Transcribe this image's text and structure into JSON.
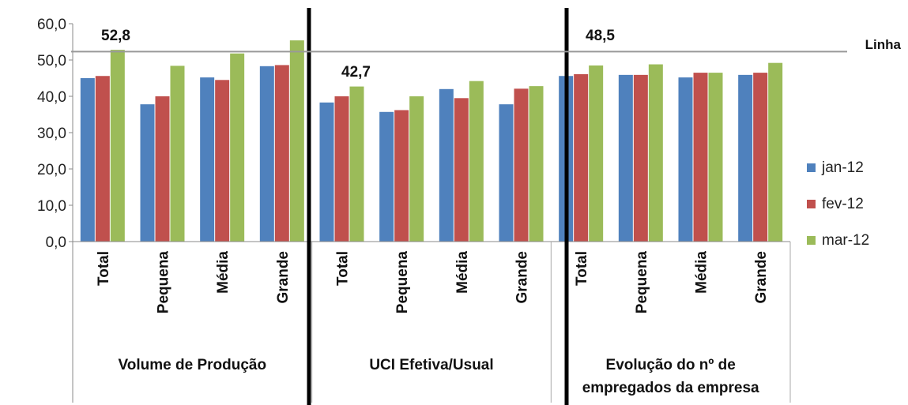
{
  "chart_data": {
    "type": "bar",
    "ylim": [
      0,
      60
    ],
    "yticks": [
      "0,0",
      "10,0",
      "20,0",
      "30,0",
      "40,0",
      "50,0",
      "60,0"
    ],
    "grid": false,
    "legend_position": "right",
    "groups": [
      {
        "label": "Volume de Produção",
        "categories": [
          "Total",
          "Pequena",
          "Média",
          "Grande"
        ]
      },
      {
        "label": "UCI Efetiva/Usual",
        "categories": [
          "Total",
          "Pequena",
          "Média",
          "Grande"
        ]
      },
      {
        "label_lines": [
          "Evolução do nº de",
          "empregados da empresa"
        ],
        "categories": [
          "Total",
          "Pequena",
          "Média",
          "Grande"
        ]
      }
    ],
    "series": [
      {
        "name": "jan-12",
        "color": "#4F81BD",
        "values": [
          45.0,
          37.8,
          45.2,
          48.3,
          38.3,
          35.7,
          42.0,
          37.8,
          45.6,
          45.9,
          45.2,
          45.9
        ]
      },
      {
        "name": "fev-12",
        "color": "#C0504D",
        "values": [
          45.6,
          40.0,
          44.5,
          48.6,
          40.0,
          36.2,
          39.5,
          42.1,
          46.1,
          45.9,
          46.5,
          46.5
        ]
      },
      {
        "name": "mar-12",
        "color": "#9BBB59",
        "values": [
          52.8,
          48.4,
          51.8,
          55.4,
          42.7,
          40.0,
          44.2,
          42.8,
          48.5,
          48.8,
          46.5,
          49.2
        ]
      }
    ],
    "annotations": [
      "52,8",
      "42,7",
      "48,5"
    ],
    "reference_line": {
      "label": "Linha",
      "value": 52.3
    }
  }
}
